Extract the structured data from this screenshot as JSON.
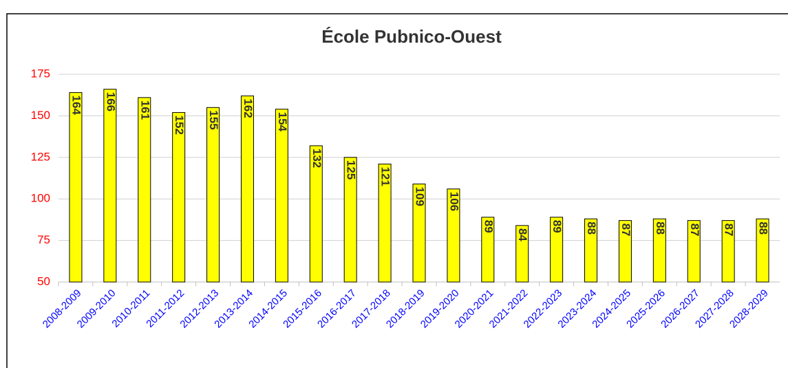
{
  "chart_data": {
    "type": "bar",
    "title": "École Pubnico-Ouest",
    "categories": [
      "2008-2009",
      "2009-2010",
      "2010-2011",
      "2011-2012",
      "2012-2013",
      "2013-2014",
      "2014-2015",
      "2015-2016",
      "2016-2017",
      "2017-2018",
      "2018-2019",
      "2019-2020",
      "2020-2021",
      "2021-2022",
      "2022-2023",
      "2023-2024",
      "2024-2025",
      "2025-2026",
      "2026-2027",
      "2027-2028",
      "2028-2029"
    ],
    "values": [
      164,
      166,
      161,
      152,
      155,
      162,
      154,
      132,
      125,
      121,
      109,
      106,
      89,
      84,
      89,
      88,
      87,
      88,
      87,
      87,
      88
    ],
    "color": "#ffff00",
    "ylim": [
      50,
      175
    ],
    "yticks": [
      50,
      75,
      100,
      125,
      150,
      175
    ],
    "grid": true
  }
}
